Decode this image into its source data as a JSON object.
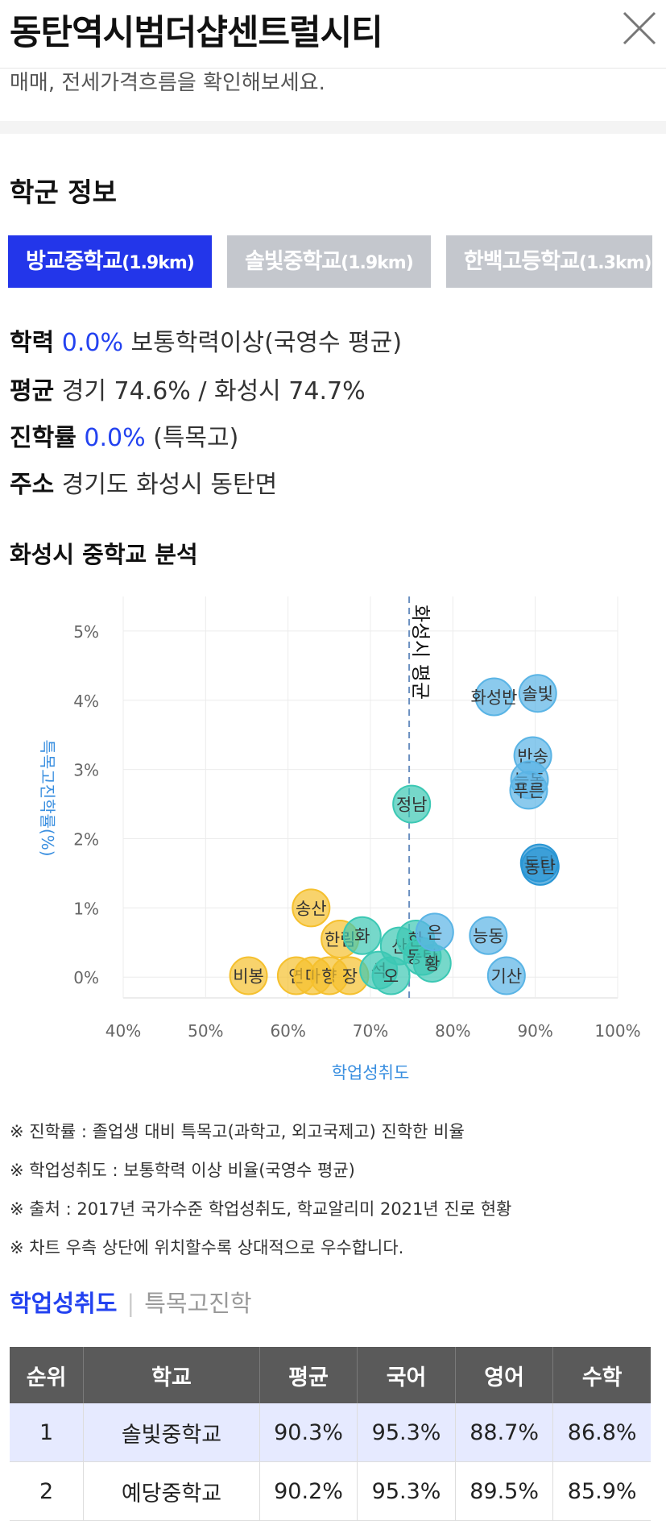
{
  "header": {
    "title": "동탄역시범더샵센트럴시티",
    "subtext": "매매, 전세가격흐름을 확인해보세요."
  },
  "school_section": {
    "title": "학군 정보",
    "tabs": [
      {
        "name": "방교중학교",
        "dist": "(1.9km)"
      },
      {
        "name": "솔빛중학교",
        "dist": "(1.9km)"
      },
      {
        "name": "한백고등학교",
        "dist": "(1.3km)"
      }
    ],
    "info": {
      "l1": {
        "label": "학력",
        "value": "0.0%",
        "desc": "보통학력이상(국영수 평균)"
      },
      "l2": {
        "label": "평균",
        "desc": "경기 74.6% / 화성시 74.7%"
      },
      "l3": {
        "label": "진학률",
        "value": "0.0%",
        "desc": "(특목고)"
      },
      "l4": {
        "label": "주소",
        "desc": "경기도 화성시 동탄면"
      }
    }
  },
  "chart_section": {
    "title": "화성시 중학교 분석"
  },
  "chart_data": {
    "type": "scatter",
    "xlabel": "학업성취도",
    "ylabel": "특목고진학률(%)",
    "xlim": [
      40,
      100
    ],
    "ylim": [
      -0.3,
      5.5
    ],
    "x_ticks": [
      "40%",
      "50%",
      "60%",
      "70%",
      "80%",
      "90%",
      "100%"
    ],
    "y_ticks": [
      "0%",
      "1%",
      "2%",
      "3%",
      "4%",
      "5%"
    ],
    "average_line": {
      "x": 74.7,
      "label": "화성시 평균"
    },
    "points": [
      {
        "label": "솔빛",
        "x": 90.3,
        "y": 4.1,
        "color": "#5ab4e5"
      },
      {
        "label": "화성반",
        "x": 85.0,
        "y": 4.05,
        "color": "#5ab4e5"
      },
      {
        "label": "반송",
        "x": 89.7,
        "y": 3.2,
        "color": "#5ab4e5"
      },
      {
        "label": "능동",
        "x": 89.3,
        "y": 2.85,
        "color": "#5ab4e5"
      },
      {
        "label": "푸른",
        "x": 89.2,
        "y": 2.7,
        "color": "#5ab4e5"
      },
      {
        "label": "동탄",
        "x": 90.5,
        "y": 1.65,
        "color": "#2a96d4"
      },
      {
        "label": "동탄",
        "x": 90.6,
        "y": 1.6,
        "color": "#2a96d4"
      },
      {
        "label": "능동",
        "x": 84.3,
        "y": 0.6,
        "color": "#5ab4e5"
      },
      {
        "label": "기산",
        "x": 86.5,
        "y": 0.02,
        "color": "#5ab4e5"
      },
      {
        "label": "정남",
        "x": 75.0,
        "y": 2.5,
        "color": "#3cc8b4"
      },
      {
        "label": "송산",
        "x": 62.8,
        "y": 1.0,
        "color": "#f5c02e"
      },
      {
        "label": "비봉",
        "x": 55.2,
        "y": 0.02,
        "color": "#f5c02e"
      },
      {
        "label": "한림",
        "x": 66.3,
        "y": 0.55,
        "color": "#f5c02e"
      },
      {
        "label": "연",
        "x": 61.0,
        "y": 0.02,
        "color": "#f5c02e"
      },
      {
        "label": "마",
        "x": 63.0,
        "y": 0.02,
        "color": "#f5c02e"
      },
      {
        "label": "향",
        "x": 65.0,
        "y": 0.02,
        "color": "#f5c02e"
      },
      {
        "label": "장",
        "x": 67.5,
        "y": 0.02,
        "color": "#f5c02e"
      },
      {
        "label": "화",
        "x": 69.0,
        "y": 0.6,
        "color": "#3cc8b4"
      },
      {
        "label": "석",
        "x": 71.0,
        "y": 0.1,
        "color": "#3cc8b4"
      },
      {
        "label": "오",
        "x": 72.5,
        "y": 0.02,
        "color": "#3cc8b4"
      },
      {
        "label": "산",
        "x": 73.5,
        "y": 0.45,
        "color": "#3cc8b4"
      },
      {
        "label": "한",
        "x": 75.5,
        "y": 0.55,
        "color": "#3cc8b4"
      },
      {
        "label": "동탄",
        "x": 76.3,
        "y": 0.3,
        "color": "#3cc8b4"
      },
      {
        "label": "황",
        "x": 77.5,
        "y": 0.2,
        "color": "#3cc8b4"
      },
      {
        "label": "은",
        "x": 77.8,
        "y": 0.65,
        "color": "#5ab4e5"
      }
    ]
  },
  "notes": [
    "※ 진학률 : 졸업생 대비 특목고(과학고, 외고국제고) 진학한 비율",
    "※ 학업성취도 : 보통학력 이상 비율(국영수 평균)",
    "※ 출처 : 2017년 국가수준 학업성취도, 학교알리미 2021년 진로 현황",
    "※ 차트 우측 상단에 위치할수록 상대적으로 우수합니다."
  ],
  "toggle": {
    "active": "학업성취도",
    "inactive": "특목고진학"
  },
  "table": {
    "headers": [
      "순위",
      "학교",
      "평균",
      "국어",
      "영어",
      "수학"
    ],
    "rows": [
      [
        "1",
        "솔빛중학교",
        "90.3%",
        "95.3%",
        "88.7%",
        "86.8%"
      ],
      [
        "2",
        "예당중학교",
        "90.2%",
        "95.3%",
        "89.5%",
        "85.9%"
      ]
    ]
  }
}
